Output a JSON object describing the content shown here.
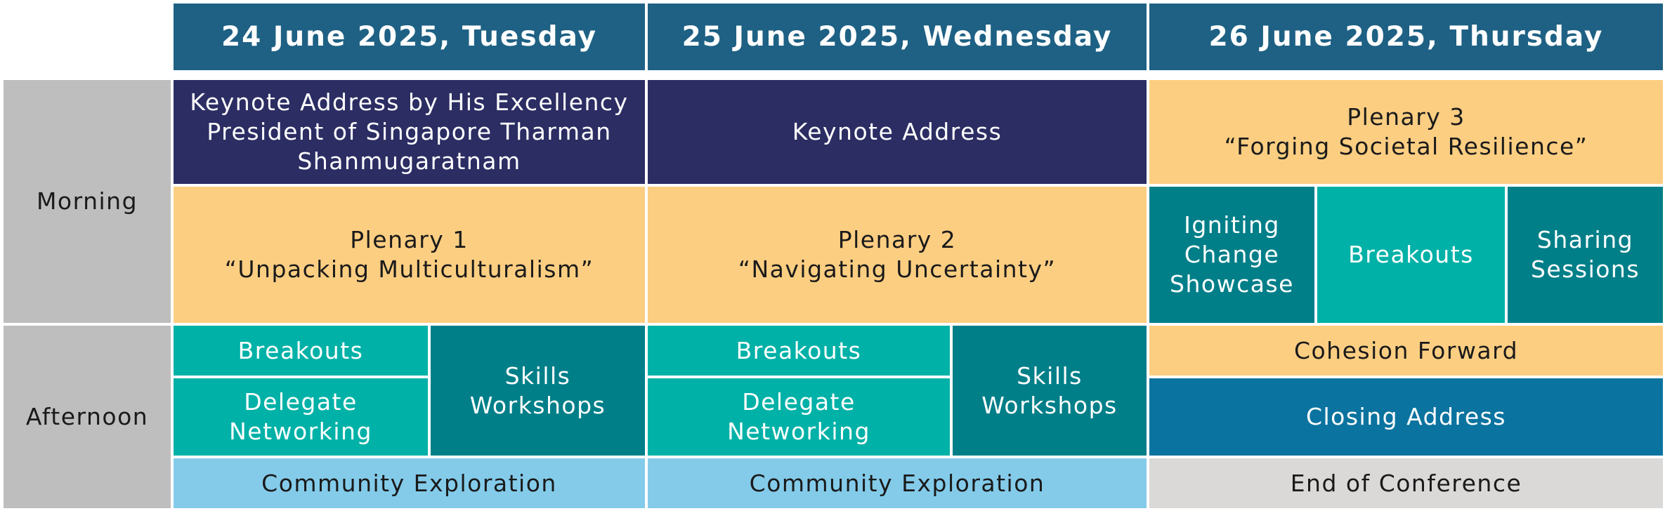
{
  "colors": {
    "header": "#1e6184",
    "side": "#bebebe",
    "navy": "#2b2d63",
    "orange": "#fcce82",
    "teal_dark": "#007f89",
    "teal_light": "#00b1a7",
    "sky": "#84cbea",
    "blue": "#0b739f",
    "grey": "#dad9d8"
  },
  "headers": {
    "day1": "24 June 2025, Tuesday",
    "day2": "25 June 2025, Wednesday",
    "day3": "26 June 2025, Thursday"
  },
  "periods": {
    "morning": "Morning",
    "afternoon": "Afternoon"
  },
  "day1": {
    "keynote_lines": [
      "Keynote Address by His Excellency",
      "President of Singapore Tharman",
      "Shanmugaratnam"
    ],
    "plenary_lines": [
      "Plenary 1",
      "“Unpacking Multiculturalism”"
    ],
    "breakouts": "Breakouts",
    "networking_lines": [
      "Delegate",
      "Networking"
    ],
    "workshops_lines": [
      "Skills",
      "Workshops"
    ],
    "community": "Community Exploration"
  },
  "day2": {
    "keynote": "Keynote Address",
    "plenary_lines": [
      "Plenary 2",
      "“Navigating Uncertainty”"
    ],
    "breakouts": "Breakouts",
    "networking_lines": [
      "Delegate",
      "Networking"
    ],
    "workshops_lines": [
      "Skills",
      "Workshops"
    ],
    "community": "Community Exploration"
  },
  "day3": {
    "plenary_lines": [
      "Plenary 3",
      "“Forging Societal Resilience”"
    ],
    "showcase_lines": [
      "Igniting",
      "Change",
      "Showcase"
    ],
    "breakouts": "Breakouts",
    "sharing_lines": [
      "Sharing",
      "Sessions"
    ],
    "cohesion": "Cohesion Forward",
    "closing": "Closing Address",
    "end": "End of Conference"
  }
}
